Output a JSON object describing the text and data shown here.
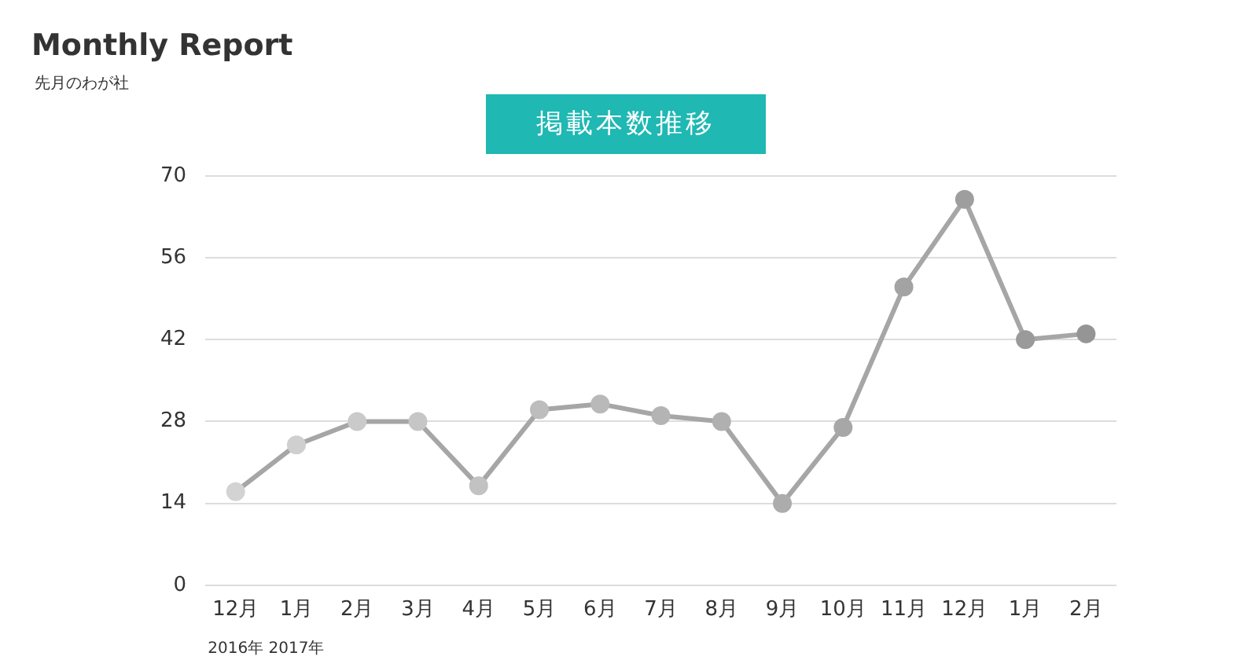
{
  "chart_data": {
    "type": "line",
    "title": "Monthly Report",
    "subtitle": "先月のわが社",
    "annotations": [
      "掲載本数推移",
      "2016年",
      "2017年"
    ],
    "categories": [
      "12月",
      "1月",
      "2月",
      "3月",
      "4月",
      "5月",
      "6月",
      "7月",
      "8月",
      "9月",
      "10月",
      "11月",
      "12月",
      "1月",
      "2月"
    ],
    "series": [
      {
        "color": "#a6a6a6",
        "values": [
          16,
          24,
          28,
          28,
          17,
          30,
          31,
          29,
          28,
          14,
          27,
          51,
          66,
          42,
          43
        ],
        "colors": [
          "#d3d3d3",
          "#cfcfcf",
          "#cacaca",
          "#c6c6c6",
          "#c2c2c2",
          "#bdbdbd",
          "#b9b9b9",
          "#b4b4b4",
          "#b0b0b0",
          "#acacac",
          "#a7a7a7",
          "#a3a3a3",
          "#9e9e9e",
          "#9a9a9a",
          "#959595"
        ]
      }
    ],
    "ylim": [
      0,
      70
    ],
    "yticks": [
      0,
      14,
      28,
      42,
      56,
      70
    ],
    "grid": "y",
    "marker": "circle",
    "line_style": "solid",
    "legend": false
  }
}
